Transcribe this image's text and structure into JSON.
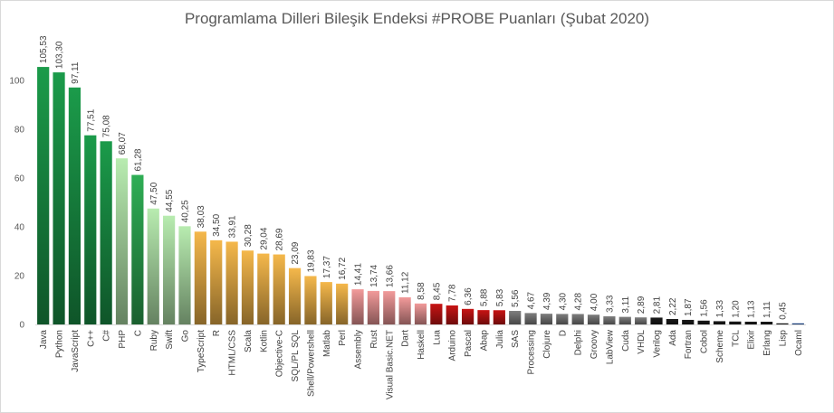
{
  "chart_data": {
    "type": "bar",
    "title": "Programlama Dilleri Bileşik  Endeksi #PROBE Puanları (Şubat 2020)",
    "xlabel": "",
    "ylabel": "",
    "ylim": [
      0,
      120
    ],
    "yticks": [
      0,
      20,
      40,
      60,
      80,
      100
    ],
    "grid": false,
    "categories": [
      "Java",
      "Python",
      "JavaScript",
      "C++",
      "C#",
      "PHP",
      "C",
      "Ruby",
      "Swift",
      "Go",
      "TypeScript",
      "R",
      "HTML/CSS",
      "Scala",
      "Kotlin",
      "Objective-C",
      "SQL/PL SQL",
      "Shell/Powershell",
      "Matlab",
      "Perl",
      "Assembly",
      "Rust",
      "Visual Basic.NET",
      "Dart",
      "Haskell",
      "Lua",
      "Arduino",
      "Pascal",
      "Abap",
      "Julia",
      "SAS",
      "Processing",
      "Clojure",
      "D",
      "Delphi",
      "Groovy",
      "LabView",
      "Cuda",
      "VHDL",
      "Verilog",
      "Ada",
      "Fortran",
      "Cobol",
      "Scheme",
      "TCL",
      "Elixir",
      "Erlang",
      "Lisp",
      "Ocaml"
    ],
    "values": [
      105.53,
      103.3,
      97.11,
      77.51,
      75.08,
      68.07,
      61.28,
      47.5,
      44.55,
      40.25,
      38.03,
      34.5,
      33.91,
      30.28,
      29.04,
      28.69,
      23.09,
      19.83,
      17.37,
      16.72,
      14.41,
      13.74,
      13.66,
      11.12,
      8.58,
      8.45,
      7.78,
      6.36,
      5.88,
      5.83,
      5.56,
      4.67,
      4.39,
      4.3,
      4.28,
      4.0,
      3.33,
      3.11,
      2.89,
      2.81,
      2.22,
      1.87,
      1.56,
      1.33,
      1.2,
      1.13,
      1.11,
      0.45,
      0.45
    ],
    "value_labels": [
      "105,53",
      "103,30",
      "97,11",
      "77,51",
      "75,08",
      "68,07",
      "61,28",
      "47,50",
      "44,55",
      "40,25",
      "38,03",
      "34,50",
      "33,91",
      "30,28",
      "29,04",
      "28,69",
      "23,09",
      "19,83",
      "17,37",
      "16,72",
      "14,41",
      "13,74",
      "13,66",
      "11,12",
      "8,58",
      "8,45",
      "7,78",
      "6,36",
      "5,88",
      "5,83",
      "5,56",
      "4,67",
      "4,39",
      "4,30",
      "4,28",
      "4,00",
      "3,33",
      "3,11",
      "2,89",
      "2,81",
      "2,22",
      "1,87",
      "1,56",
      "1,33",
      "1,20",
      "1,13",
      "1,11",
      "0,45",
      ""
    ],
    "bar_colors": [
      "#1b9b4a",
      "#1b9b4a",
      "#1b9b4a",
      "#1b9b4a",
      "#1b9b4a",
      "#b8ecb0",
      "#2fae55",
      "#b8ecb0",
      "#b8ecb0",
      "#b8ecb0",
      "#f5b84b",
      "#f5b84b",
      "#f5b84b",
      "#f5b84b",
      "#f5b84b",
      "#f5b84b",
      "#f5b84b",
      "#f5b84b",
      "#f5b84b",
      "#f5b84b",
      "#f29a9a",
      "#f29a9a",
      "#f29a9a",
      "#f29a9a",
      "#f29a9a",
      "#c81414",
      "#c81414",
      "#c81414",
      "#c81414",
      "#c81414",
      "#7f7f7f",
      "#7f7f7f",
      "#7f7f7f",
      "#7f7f7f",
      "#7f7f7f",
      "#7f7f7f",
      "#7f7f7f",
      "#7f7f7f",
      "#7f7f7f",
      "#1a1a1a",
      "#1a1a1a",
      "#1a1a1a",
      "#1a1a1a",
      "#1a1a1a",
      "#1a1a1a",
      "#1a1a1a",
      "#1a1a1a",
      "#1a1a1a",
      "#1f4e9a"
    ]
  }
}
